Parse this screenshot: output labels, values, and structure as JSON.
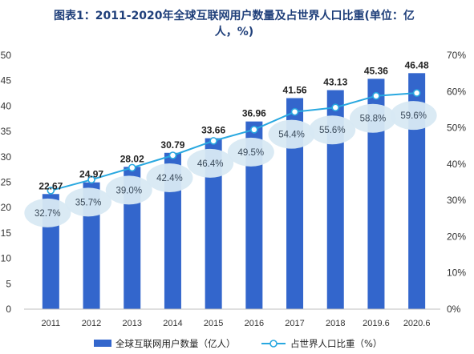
{
  "chart_data": {
    "type": "bar",
    "title": "图表1：2011-2020年全球互联网用户数量及占世界人口比重(单位：亿人，%)",
    "categories": [
      "2011",
      "2012",
      "2013",
      "2014",
      "2015",
      "2016",
      "2017",
      "2018",
      "2019.6",
      "2020.6"
    ],
    "series": [
      {
        "name": "全球互联网用户数量（亿人）",
        "type": "bar",
        "axis": "left",
        "color": "#3366cc",
        "values": [
          22.67,
          24.97,
          28.02,
          30.79,
          33.66,
          36.96,
          41.56,
          43.13,
          45.36,
          46.48
        ],
        "labels": [
          "22.67",
          "24.97",
          "28.02",
          "30.79",
          "33.66",
          "36.96",
          "41.56",
          "43.13",
          "45.36",
          "46.48"
        ]
      },
      {
        "name": "占世界人口比重（%）",
        "type": "line",
        "axis": "right",
        "color": "#29a8e0",
        "values": [
          32.7,
          35.7,
          39.0,
          42.4,
          46.4,
          49.5,
          54.4,
          55.6,
          58.8,
          59.6
        ],
        "labels": [
          "32.7%",
          "35.7%",
          "39.0%",
          "42.4%",
          "46.4%",
          "49.5%",
          "54.4%",
          "55.6%",
          "58.8%",
          "59.6%"
        ]
      }
    ],
    "y_left": {
      "min": 0,
      "max": 50,
      "ticks": [
        "0",
        "5",
        "10",
        "15",
        "20",
        "25",
        "30",
        "35",
        "40",
        "45",
        "50"
      ]
    },
    "y_right": {
      "min": 0,
      "max": 70,
      "ticks": [
        "0%",
        "10%",
        "20%",
        "30%",
        "40%",
        "50%",
        "60%",
        "70%"
      ]
    },
    "grid": false,
    "legend_position": "bottom",
    "label_bubble_color": "#d8e9f3"
  }
}
